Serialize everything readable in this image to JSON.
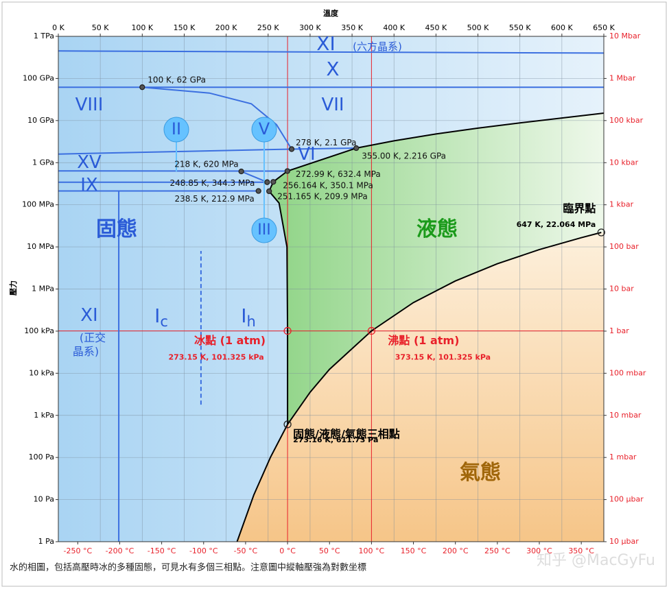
{
  "chart_data": {
    "type": "phase",
    "x_label": "溫度",
    "y_label": "壓力",
    "caption": "水的相圖，包括高壓時冰的多種固態，可見水有多個三相點。注意圖中縱軸壓強為對數坐標",
    "watermark": "知乎 @MacGyFu",
    "log_scale": true,
    "grid": true,
    "xlim": [
      0,
      650
    ],
    "xticks": [
      {
        "value": 0,
        "label": "0 K"
      },
      {
        "value": 50,
        "label": "50 K"
      },
      {
        "value": 100,
        "label": "100 K"
      },
      {
        "value": 150,
        "label": "150 K"
      },
      {
        "value": 200,
        "label": "200 K"
      },
      {
        "value": 250,
        "label": "250 K"
      },
      {
        "value": 300,
        "label": "300 K"
      },
      {
        "value": 350,
        "label": "350 K"
      },
      {
        "value": 400,
        "label": "400 K"
      },
      {
        "value": 450,
        "label": "450 K"
      },
      {
        "value": 500,
        "label": "500 K"
      },
      {
        "value": 550,
        "label": "550 K"
      },
      {
        "value": 600,
        "label": "600 K"
      },
      {
        "value": 650,
        "label": "650 K"
      }
    ],
    "x2lim": [
      -273.15,
      376.85
    ],
    "x2ticks": [
      {
        "value": -250,
        "label": "-250 °C"
      },
      {
        "value": -200,
        "label": "-200 °C"
      },
      {
        "value": -150,
        "label": "-150 °C"
      },
      {
        "value": -100,
        "label": "-100 °C"
      },
      {
        "value": -50,
        "label": "-50 °C"
      },
      {
        "value": 0,
        "label": "0 °C"
      },
      {
        "value": 50,
        "label": "50 °C"
      },
      {
        "value": 100,
        "label": "100 °C"
      },
      {
        "value": 150,
        "label": "150 °C"
      },
      {
        "value": 200,
        "label": "200 °C"
      },
      {
        "value": 250,
        "label": "250 °C"
      },
      {
        "value": 300,
        "label": "300 °C"
      },
      {
        "value": 350,
        "label": "350 °C"
      }
    ],
    "ylim": [
      1,
      1000000000000.0
    ],
    "yticks": [
      {
        "value": 1,
        "label": "1 Pa"
      },
      {
        "value": 10,
        "label": "10 Pa"
      },
      {
        "value": 100,
        "label": "100 Pa"
      },
      {
        "value": 1000,
        "label": "1 kPa"
      },
      {
        "value": 10000,
        "label": "10 kPa"
      },
      {
        "value": 100000,
        "label": "100 kPa"
      },
      {
        "value": 1000000,
        "label": "1 MPa"
      },
      {
        "value": 10000000,
        "label": "10 MPa"
      },
      {
        "value": 100000000,
        "label": "100 MPa"
      },
      {
        "value": 1000000000,
        "label": "1 GPa"
      },
      {
        "value": 10000000000,
        "label": "10 GPa"
      },
      {
        "value": 100000000000,
        "label": "100 GPa"
      },
      {
        "value": 1000000000000.0,
        "label": "1 TPa"
      }
    ],
    "y2lim": [
      1e-05,
      10000000
    ],
    "y2ticks": [
      {
        "value": 1e-05,
        "label": "10 µbar"
      },
      {
        "value": 0.0001,
        "label": "100 µbar"
      },
      {
        "value": 0.001,
        "label": "1 mbar"
      },
      {
        "value": 0.01,
        "label": "10 mbar"
      },
      {
        "value": 0.1,
        "label": "100 mbar"
      },
      {
        "value": 1,
        "label": "1 bar"
      },
      {
        "value": 10,
        "label": "10 bar"
      },
      {
        "value": 100,
        "label": "100 bar"
      },
      {
        "value": 1000,
        "label": "1 kbar"
      },
      {
        "value": 10000,
        "label": "10 kbar"
      },
      {
        "value": 100000,
        "label": "100 kbar"
      },
      {
        "value": 1000000,
        "label": "1 Mbar"
      },
      {
        "value": 10000000,
        "label": "10 Mbar"
      }
    ],
    "curves": {
      "sublimation": {
        "x": [
          213,
          233,
          253,
          273.16
        ],
        "y": [
          1,
          13,
          103,
          611.73
        ]
      },
      "vaporization": {
        "x": [
          273.16,
          300,
          323,
          373.15,
          423,
          473,
          523,
          573,
          623,
          647
        ],
        "y": [
          611.73,
          3537,
          12350,
          101325,
          476000,
          1550000,
          3970000,
          8590000,
          16500000,
          22064000
        ]
      },
      "melting": {
        "x": [
          273.16,
          273.15,
          272.4,
          263,
          251.165,
          256.164,
          272.99,
          355
        ],
        "y": [
          611.73,
          101325,
          10000000,
          110000000,
          209900000,
          350100000,
          632400000,
          2216000000
        ]
      },
      "vii_liquid": {
        "x": [
          355,
          400,
          450,
          500,
          550,
          600,
          650
        ],
        "y": [
          2216000000,
          3300000000,
          4800000000,
          6600000000,
          8800000000,
          11500000000,
          15000000000
        ]
      }
    },
    "curve_color": "#000000",
    "boundaries": [
      {
        "x": [
          0,
          650
        ],
        "y": [
          450000000000,
          400000000000
        ],
        "color": "#3b6fe0"
      },
      {
        "x": [
          0,
          650
        ],
        "y": [
          62000000000,
          62000000000
        ],
        "color": "#3b6fe0"
      },
      {
        "x": [
          100,
          180,
          230,
          260,
          278
        ],
        "y": [
          62000000000,
          45000000000,
          25000000000,
          8000000000,
          2100000000
        ],
        "color": "#3b6fe0"
      },
      {
        "x": [
          278,
          355
        ],
        "y": [
          2100000000,
          2216000000
        ],
        "color": "#3b6fe0"
      },
      {
        "x": [
          0,
          278
        ],
        "y": [
          1600000000,
          2100000000
        ],
        "color": "#3b6fe0"
      },
      {
        "x": [
          0,
          272.99
        ],
        "y": [
          640000000,
          632400000
        ],
        "color": "#3b6fe0"
      },
      {
        "x": [
          218,
          248.85
        ],
        "y": [
          620000000,
          344300000
        ],
        "color": "#3b6fe0"
      },
      {
        "x": [
          0,
          248.85
        ],
        "y": [
          344300000,
          344300000
        ],
        "color": "#3b6fe0"
      },
      {
        "x": [
          0,
          238.5
        ],
        "y": [
          212900000,
          212900000
        ],
        "color": "#3b6fe0"
      },
      {
        "x": [
          72,
          72
        ],
        "y": [
          1,
          212900000
        ],
        "color": "#3b6fe0"
      },
      {
        "x": [
          170,
          170
        ],
        "y": [
          1800,
          8000000
        ],
        "color": "#3b6fe0",
        "style": "dashed"
      }
    ],
    "points": [
      {
        "x": 100,
        "y": 62000000000,
        "label": "100 K, 62 GPa"
      },
      {
        "x": 278,
        "y": 2100000000,
        "label": "278 K, 2.1 GPa"
      },
      {
        "x": 355,
        "y": 2216000000,
        "label": "355.00 K, 2.216 GPa"
      },
      {
        "x": 218,
        "y": 620000000,
        "label": "218 K, 620 MPa"
      },
      {
        "x": 272.99,
        "y": 632400000,
        "label": "272.99 K, 632.4 MPa"
      },
      {
        "x": 248.85,
        "y": 344300000,
        "label": "248.85 K, 344.3 MPa"
      },
      {
        "x": 256.164,
        "y": 350100000,
        "label": "256.164 K, 350.1 MPa"
      },
      {
        "x": 238.5,
        "y": 212900000,
        "label": "238.5 K, 212.9 MPa"
      },
      {
        "x": 251.165,
        "y": 209900000,
        "label": "251.165 K, 209.9 MPa"
      },
      {
        "x": 647,
        "y": 22064000,
        "name": "臨界點",
        "label": "647 K, 22.064 MPa"
      },
      {
        "x": 273.15,
        "y": 101325,
        "name": "冰點 (1 atm)",
        "label": "273.15 K, 101.325 kPa",
        "color": "#e8202a"
      },
      {
        "x": 373.15,
        "y": 101325,
        "name": "沸點 (1 atm)",
        "label": "373.15 K, 101.325 kPa",
        "color": "#e8202a"
      },
      {
        "x": 273.16,
        "y": 611.73,
        "name": "固態/液態/氣態三相點",
        "label": "273.16 K, 611.73 Pa"
      }
    ],
    "regions": [
      {
        "text": "XI"
      },
      {
        "text": "(六方晶系)"
      },
      {
        "text": "X"
      },
      {
        "text": "VIII"
      },
      {
        "text": "VII"
      },
      {
        "text": "II"
      },
      {
        "text": "V"
      },
      {
        "text": "VI"
      },
      {
        "text": "XV"
      },
      {
        "text": "IX"
      },
      {
        "text": "III"
      },
      {
        "text": "固態"
      },
      {
        "text": "液態"
      },
      {
        "text": "XI"
      },
      {
        "text": "(正交"
      },
      {
        "text": "晶系)"
      },
      {
        "text": "I",
        "sub": "c"
      },
      {
        "text": "I",
        "sub": "h"
      },
      {
        "text": "氣態"
      }
    ]
  }
}
